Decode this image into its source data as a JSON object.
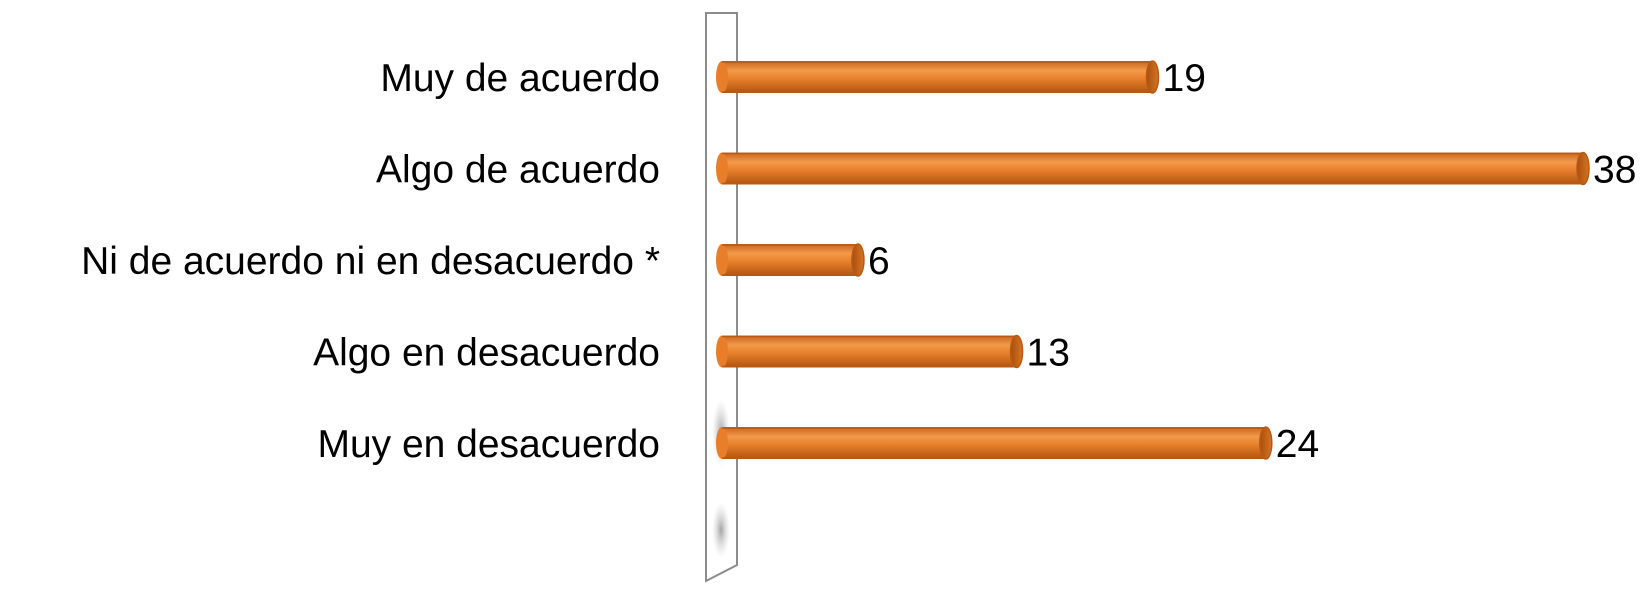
{
  "chart_data": {
    "type": "bar",
    "orientation": "horizontal",
    "style": "3d-cylinder",
    "categories": [
      "Muy de acuerdo",
      "Algo de acuerdo",
      "Ni de acuerdo ni en desacuerdo *",
      "Algo en desacuerdo",
      "Muy en desacuerdo"
    ],
    "series": [
      {
        "values": [
          19,
          38,
          6,
          13,
          24
        ]
      }
    ],
    "data_labels": [
      "19",
      "38",
      "6",
      "13",
      "24"
    ],
    "xlim": [
      0,
      38
    ],
    "grid": false,
    "legend": "none",
    "colors": {
      "bar": "#E87E2A",
      "bar_dark": "#B85A14",
      "bar_light": "#F6A862",
      "wall_stroke": "#8C8C8C",
      "text": "#000000"
    }
  }
}
